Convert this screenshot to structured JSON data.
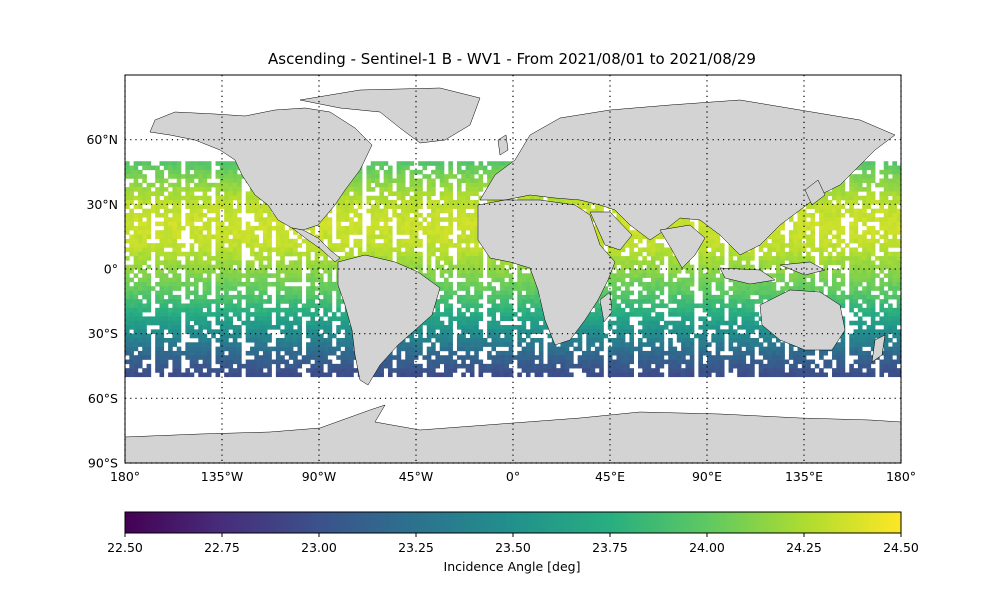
{
  "title": "Ascending - Sentinel-1 B - WV1 - From 2021/08/01 to 2021/08/29",
  "map": {
    "projection": "PlateCarree",
    "lon_range": [
      -180,
      180
    ],
    "lat_range": [
      -90,
      90
    ],
    "land_color": "#d3d3d3",
    "coastline_color": "#000000",
    "grid": {
      "style": "dotted",
      "lon_lines": [
        -180,
        -135,
        -90,
        -45,
        0,
        45,
        90,
        135,
        180
      ],
      "lat_lines": [
        60,
        30,
        0,
        -30,
        -60,
        -90
      ]
    },
    "lon_tick_labels": [
      {
        "lon": -180,
        "label": "180°"
      },
      {
        "lon": -135,
        "label": "135°W"
      },
      {
        "lon": -90,
        "label": "90°W"
      },
      {
        "lon": -45,
        "label": "45°W"
      },
      {
        "lon": 0,
        "label": "0°"
      },
      {
        "lon": 45,
        "label": "45°E"
      },
      {
        "lon": 90,
        "label": "90°E"
      },
      {
        "lon": 135,
        "label": "135°E"
      },
      {
        "lon": 180,
        "label": "180°"
      }
    ],
    "lat_tick_labels": [
      {
        "lat": 60,
        "label": "60°N"
      },
      {
        "lat": 30,
        "label": "30°N"
      },
      {
        "lat": 0,
        "label": "0°"
      },
      {
        "lat": -30,
        "label": "30°S"
      },
      {
        "lat": -60,
        "label": "60°S"
      },
      {
        "lat": -90,
        "label": "90°S"
      }
    ]
  },
  "chart_data": {
    "type": "heatmap",
    "title": "Ascending - Sentinel-1 B - WV1 - From 2021/08/01 to 2021/08/29",
    "colormap": "viridis",
    "value_range": [
      22.5,
      24.5
    ],
    "colorbar_label": "Incidence Angle [deg]",
    "colorbar_ticks": [
      "22.50",
      "22.75",
      "23.00",
      "23.25",
      "23.50",
      "23.75",
      "24.00",
      "24.25",
      "24.50"
    ],
    "data_coverage_lat": [
      -50,
      50
    ],
    "latitude_profile": [
      {
        "lat": 50,
        "value": 23.95
      },
      {
        "lat": 40,
        "value": 24.15
      },
      {
        "lat": 30,
        "value": 24.3
      },
      {
        "lat": 20,
        "value": 24.35
      },
      {
        "lat": 10,
        "value": 24.3
      },
      {
        "lat": 0,
        "value": 24.15
      },
      {
        "lat": -10,
        "value": 24.0
      },
      {
        "lat": -20,
        "value": 23.75
      },
      {
        "lat": -30,
        "value": 23.45
      },
      {
        "lat": -40,
        "value": 23.15
      },
      {
        "lat": -50,
        "value": 22.95
      }
    ]
  }
}
